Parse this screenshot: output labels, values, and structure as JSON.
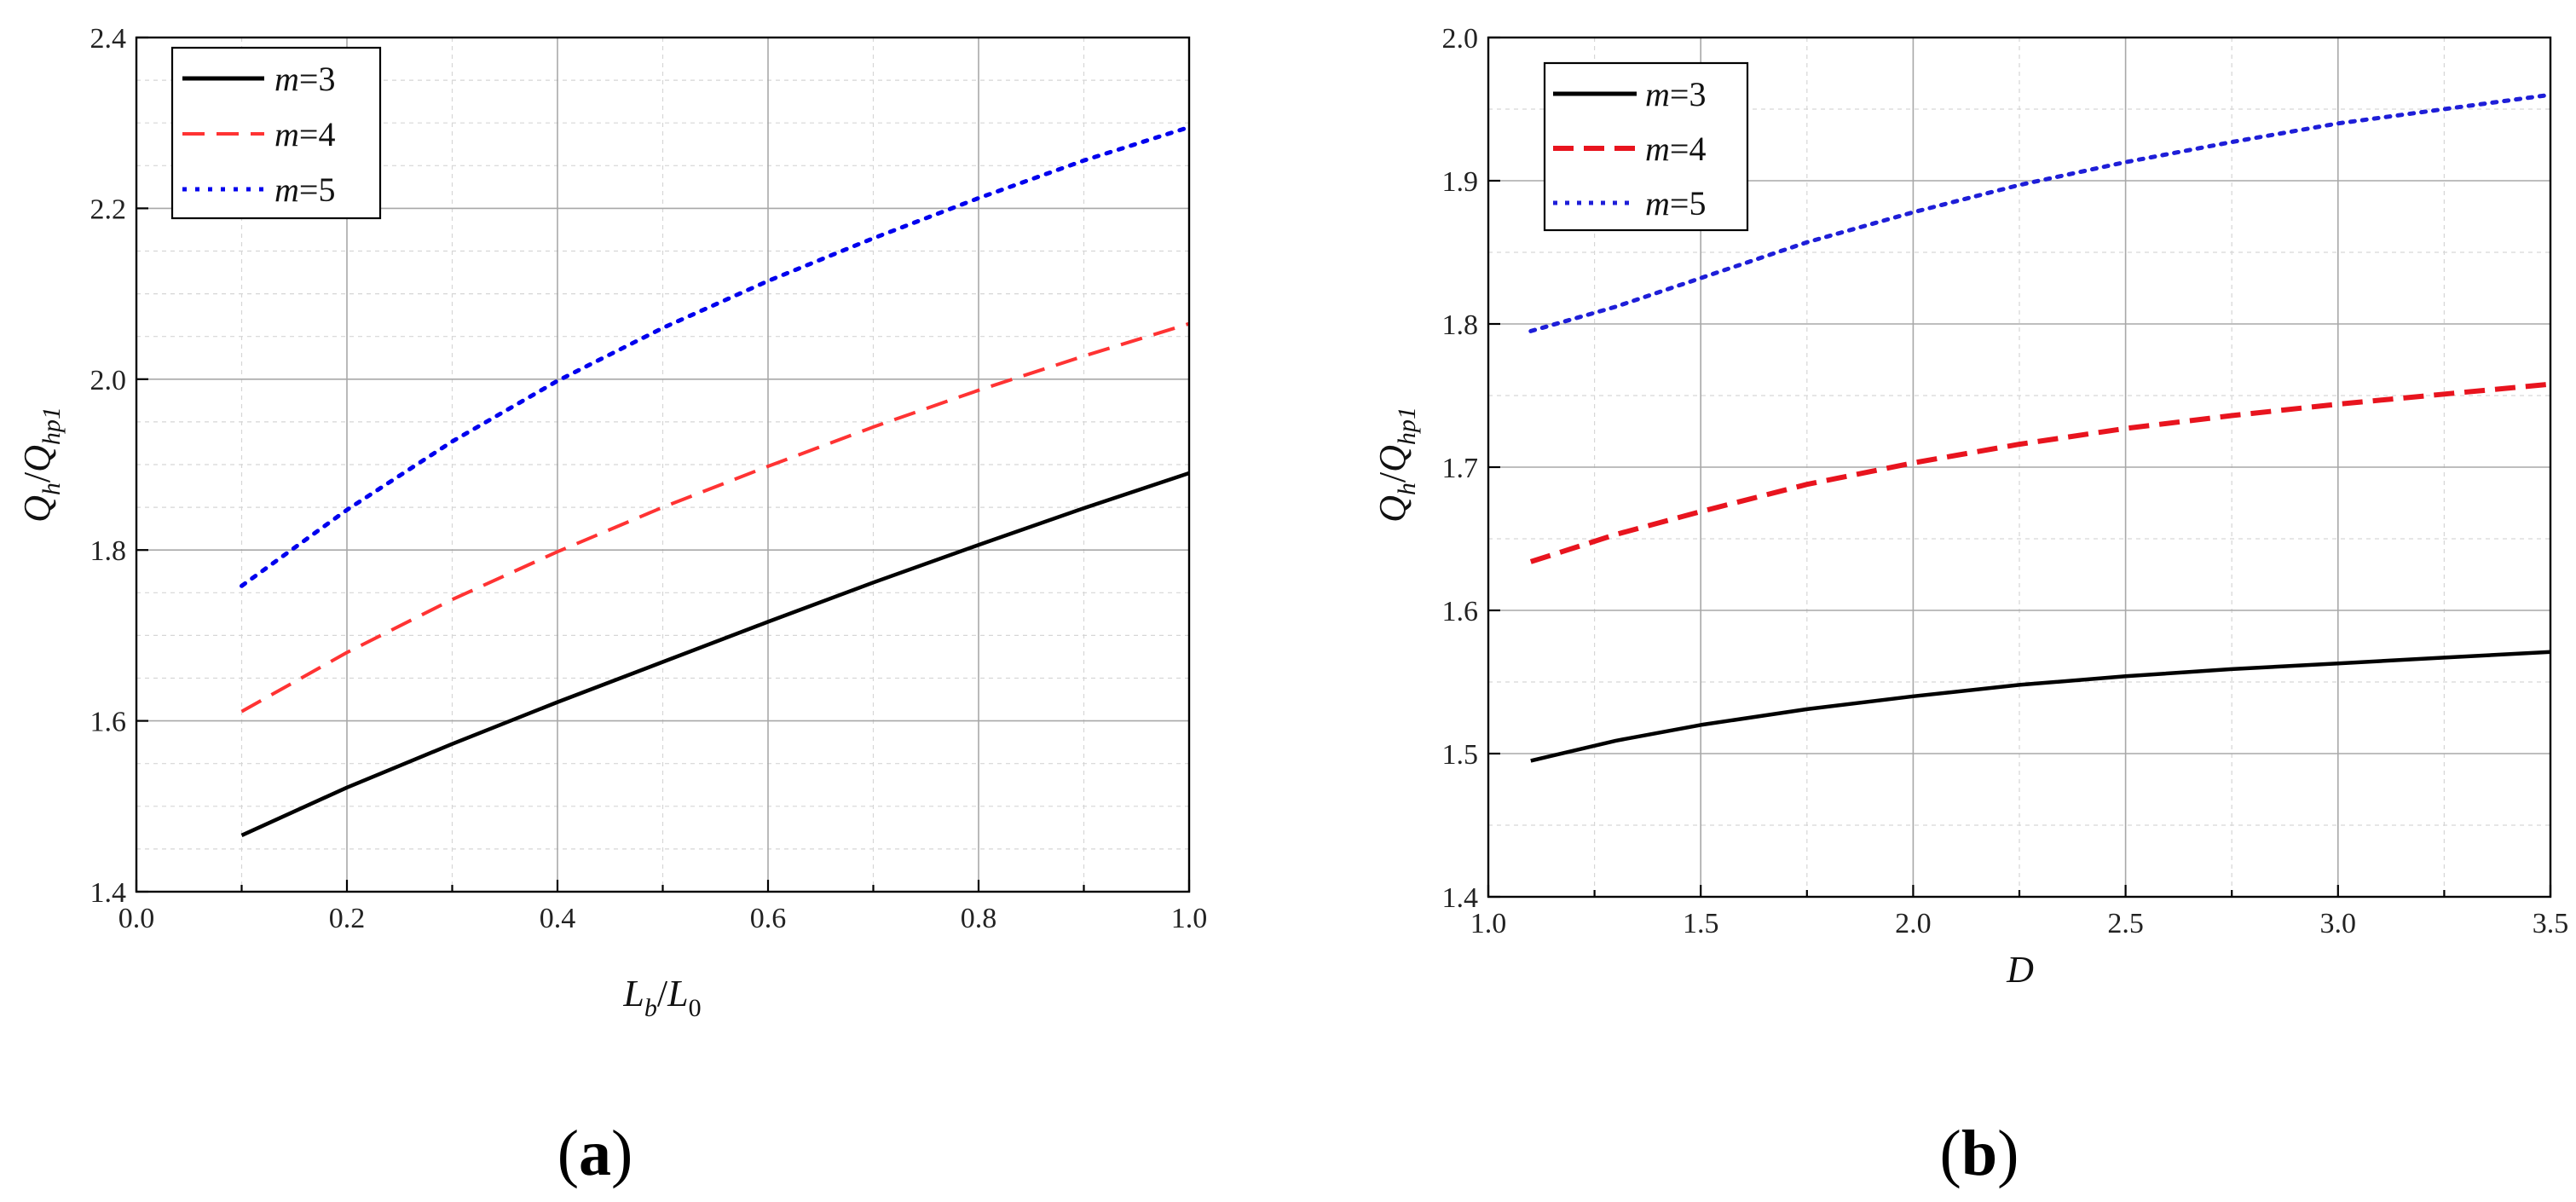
{
  "chart_data": [
    {
      "type": "line",
      "panel_label": "a",
      "title": "",
      "xlabel": "Lb/L0",
      "ylabel": "Qh/Qhp1",
      "xlim": [
        0.0,
        1.0
      ],
      "ylim": [
        1.4,
        2.4
      ],
      "x_ticks": [
        0.0,
        0.2,
        0.4,
        0.6,
        0.8,
        1.0
      ],
      "y_ticks": [
        1.4,
        1.6,
        1.8,
        2.0,
        2.2,
        2.4
      ],
      "x_tick_labels": [
        "0.0",
        "0.2",
        "0.4",
        "0.6",
        "0.8",
        "1.0"
      ],
      "y_tick_labels": [
        "1.4",
        "1.6",
        "1.8",
        "2.0",
        "2.2",
        "2.4"
      ],
      "x_minor_step": 0.1,
      "y_minor_step": 0.05,
      "grid": true,
      "legend_position": "top-left",
      "x": [
        0.1,
        0.2,
        0.3,
        0.4,
        0.5,
        0.6,
        0.7,
        0.8,
        0.9,
        1.0
      ],
      "series": [
        {
          "name": "m=3",
          "m_label": "m",
          "m_value": "=3",
          "color": "#000000",
          "dash": "solid",
          "values": [
            1.466,
            1.522,
            1.573,
            1.622,
            1.669,
            1.716,
            1.762,
            1.806,
            1.849,
            1.89
          ]
        },
        {
          "name": "m=4",
          "m_label": "m",
          "m_value": "=4",
          "color": "#ff3333",
          "dash": "dashed",
          "values": [
            1.611,
            1.68,
            1.742,
            1.798,
            1.85,
            1.898,
            1.944,
            1.987,
            2.027,
            2.065
          ]
        },
        {
          "name": "m=5",
          "m_label": "m",
          "m_value": "=5",
          "color": "#0000ee",
          "dash": "dotted",
          "values": [
            1.758,
            1.847,
            1.927,
            1.998,
            2.06,
            2.115,
            2.165,
            2.212,
            2.256,
            2.295
          ]
        }
      ]
    },
    {
      "type": "line",
      "panel_label": "b",
      "title": "",
      "xlabel": "D",
      "ylabel": "Qh/Qhp1",
      "xlim": [
        1.0,
        3.5
      ],
      "ylim": [
        1.4,
        2.0
      ],
      "x_ticks": [
        1.0,
        1.5,
        2.0,
        2.5,
        3.0,
        3.5
      ],
      "y_ticks": [
        1.4,
        1.5,
        1.6,
        1.7,
        1.8,
        1.9,
        2.0
      ],
      "x_tick_labels": [
        "1.0",
        "1.5",
        "2.0",
        "2.5",
        "3.0",
        "3.5"
      ],
      "y_tick_labels": [
        "1.4",
        "1.5",
        "1.6",
        "1.7",
        "1.8",
        "1.9",
        "2.0"
      ],
      "x_minor_step": 0.25,
      "y_minor_step": 0.05,
      "grid": true,
      "legend_position": "top-left",
      "x": [
        1.1,
        1.3,
        1.5,
        1.75,
        2.0,
        2.25,
        2.5,
        2.75,
        3.0,
        3.25,
        3.5
      ],
      "series": [
        {
          "name": "m=3",
          "m_label": "m",
          "m_value": "=3",
          "color": "#000000",
          "dash": "solid",
          "values": [
            1.495,
            1.509,
            1.52,
            1.531,
            1.54,
            1.548,
            1.554,
            1.559,
            1.563,
            1.567,
            1.571
          ]
        },
        {
          "name": "m=4",
          "m_label": "m",
          "m_value": "=4",
          "color": "#e8141e",
          "dash": "dashed",
          "values": [
            1.634,
            1.653,
            1.669,
            1.688,
            1.703,
            1.716,
            1.727,
            1.736,
            1.744,
            1.751,
            1.758
          ]
        },
        {
          "name": "m=5",
          "m_label": "m",
          "m_value": "=5",
          "color": "#1e1ed8",
          "dash": "dotted",
          "values": [
            1.795,
            1.812,
            1.832,
            1.857,
            1.878,
            1.897,
            1.913,
            1.927,
            1.94,
            1.95,
            1.96
          ]
        }
      ]
    }
  ],
  "axis_labels": {
    "a_x": {
      "main": "L",
      "sub": "b",
      "slash": "/",
      "main2": "L",
      "sub2": "0"
    },
    "a_y": {
      "main": "Q",
      "sub": "h",
      "slash": "/",
      "main2": "Q",
      "sub2": "hp1"
    },
    "b_x": {
      "main": "D"
    },
    "b_y": {
      "main": "Q",
      "sub": "h",
      "slash": "/",
      "main2": "Q",
      "sub2": "hp1"
    }
  },
  "panel_labels": {
    "a": {
      "open": "(",
      "letter": "a",
      "close": ")"
    },
    "b": {
      "open": "(",
      "letter": "b",
      "close": ")"
    }
  }
}
